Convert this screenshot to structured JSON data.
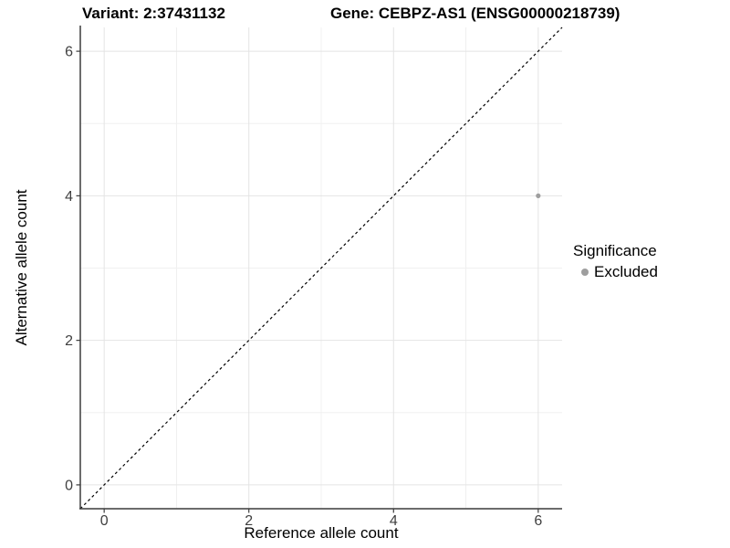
{
  "chart_data": {
    "type": "scatter",
    "title_left": "Variant: 2:37431132",
    "title_right": "Gene: CEBPZ-AS1 (ENSG00000218739)",
    "xlabel": "Reference allele count",
    "ylabel": "Alternative allele count",
    "xlim": [
      -0.33,
      6.33
    ],
    "ylim": [
      -0.33,
      6.33
    ],
    "xticks": [
      0,
      2,
      4,
      6
    ],
    "yticks": [
      0,
      2,
      4,
      6
    ],
    "minor_xticks": [
      1,
      3,
      5
    ],
    "minor_yticks": [
      1,
      3,
      5
    ],
    "grid": true,
    "identity_line": {
      "style": "dashed",
      "slope": 1,
      "intercept": 0,
      "color": "#000000"
    },
    "series": [
      {
        "name": "Excluded",
        "color": "#9e9e9e",
        "points": [
          {
            "x": 6,
            "y": 4
          }
        ]
      }
    ],
    "legend": {
      "title": "Significance",
      "position": "right",
      "items": [
        {
          "label": "Excluded",
          "color": "#9e9e9e",
          "icon": "dot-icon"
        }
      ]
    },
    "colors": {
      "grid_major": "#e4e4e4",
      "grid_minor": "#f0f0f0",
      "axis": "#3c3c3c",
      "tick_label": "#404040",
      "point": "#9e9e9e"
    }
  }
}
